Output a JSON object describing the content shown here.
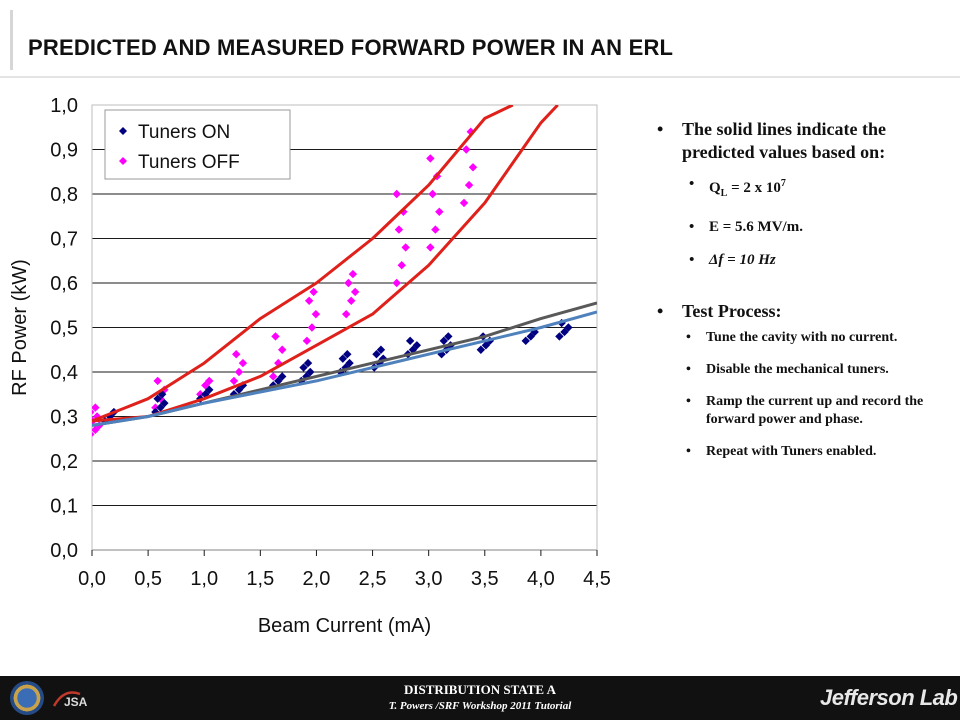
{
  "slide": {
    "title": "PREDICTED AND MEASURED FORWARD POWER IN AN ERL"
  },
  "bullets": {
    "b1": "The solid lines indicate the predicted values based  on:",
    "ql_prefix": "Q",
    "ql_sub": "L",
    "ql_text": " = 2 x 10",
    "ql_exp": "7",
    "e_field": "E = 5.6 MV/m.",
    "detune": "Δf = 10 Hz",
    "b2": "Test Process:",
    "s1": "Tune the cavity with no current.",
    "s2": "Disable the mechanical tuners.",
    "s3": "Ramp the current up and record the forward power and phase.",
    "s4": "Repeat with Tuners enabled."
  },
  "footer": {
    "distribution": "DISTRIBUTION STATE A",
    "tutorial": "T. Powers /SRF Workshop 2011 Tutorial",
    "jlab": "Jefferson Lab",
    "jsa": "JSA"
  },
  "colors": {
    "tuners_on": "#000080",
    "tuners_off": "#ff00ff",
    "predicted_red": "#e0201a",
    "fit_dark": "#595959",
    "fit_blue": "#4f81bd"
  },
  "chart_data": {
    "type": "scatter",
    "title": "",
    "xlabel": "Beam Current (mA)",
    "ylabel": "RF Power (kW)",
    "xlim": [
      0,
      4.5
    ],
    "ylim": [
      0,
      1.0
    ],
    "x_ticks": [
      "0,0",
      "0,5",
      "1,0",
      "1,5",
      "2,0",
      "2,5",
      "3,0",
      "3,5",
      "4,0",
      "4,5"
    ],
    "y_ticks": [
      "0,0",
      "0,1",
      "0,2",
      "0,3",
      "0,4",
      "0,5",
      "0,6",
      "0,7",
      "0,8",
      "0,9",
      "1,0"
    ],
    "grid": "horizontal",
    "legend_position": "top-left",
    "series": [
      {
        "name": "Tuners ON",
        "marker": "diamond",
        "color": "#000080",
        "clusters": [
          {
            "x": 0.15,
            "y": [
              0.29,
              0.3,
              0.31
            ]
          },
          {
            "x": 0.6,
            "y": [
              0.31,
              0.32,
              0.33,
              0.34,
              0.35
            ]
          },
          {
            "x": 1.0,
            "y": [
              0.34,
              0.35,
              0.36
            ]
          },
          {
            "x": 1.3,
            "y": [
              0.35,
              0.36,
              0.37
            ]
          },
          {
            "x": 1.65,
            "y": [
              0.37,
              0.38,
              0.39
            ]
          },
          {
            "x": 1.9,
            "y": [
              0.38,
              0.39,
              0.4,
              0.41,
              0.42
            ]
          },
          {
            "x": 2.25,
            "y": [
              0.4,
              0.41,
              0.42,
              0.43,
              0.44
            ]
          },
          {
            "x": 2.55,
            "y": [
              0.41,
              0.42,
              0.43,
              0.44,
              0.45
            ]
          },
          {
            "x": 2.85,
            "y": [
              0.44,
              0.45,
              0.46,
              0.47
            ]
          },
          {
            "x": 3.15,
            "y": [
              0.44,
              0.45,
              0.46,
              0.47,
              0.48
            ]
          },
          {
            "x": 3.5,
            "y": [
              0.45,
              0.46,
              0.47,
              0.48
            ]
          },
          {
            "x": 3.9,
            "y": [
              0.47,
              0.48,
              0.49
            ]
          },
          {
            "x": 4.2,
            "y": [
              0.48,
              0.49,
              0.5,
              0.51
            ]
          }
        ]
      },
      {
        "name": "Tuners OFF",
        "marker": "diamond",
        "color": "#ff00ff",
        "clusters": [
          {
            "x": 0.02,
            "y": [
              0.26,
              0.27,
              0.28,
              0.29,
              0.3,
              0.31,
              0.32
            ]
          },
          {
            "x": 0.6,
            "y": [
              0.32,
              0.34,
              0.36,
              0.38
            ]
          },
          {
            "x": 1.0,
            "y": [
              0.35,
              0.37,
              0.38
            ]
          },
          {
            "x": 1.3,
            "y": [
              0.38,
              0.4,
              0.42,
              0.44
            ]
          },
          {
            "x": 1.65,
            "y": [
              0.39,
              0.42,
              0.45,
              0.48
            ]
          },
          {
            "x": 1.95,
            "y": [
              0.47,
              0.5,
              0.53,
              0.56,
              0.58
            ]
          },
          {
            "x": 2.3,
            "y": [
              0.53,
              0.56,
              0.58,
              0.6,
              0.62
            ]
          },
          {
            "x": 2.75,
            "y": [
              0.6,
              0.64,
              0.68,
              0.72,
              0.76,
              0.8
            ]
          },
          {
            "x": 3.05,
            "y": [
              0.68,
              0.72,
              0.76,
              0.8,
              0.84,
              0.88
            ]
          },
          {
            "x": 3.35,
            "y": [
              0.78,
              0.82,
              0.86,
              0.9,
              0.94
            ]
          }
        ]
      }
    ],
    "lines": [
      {
        "color": "#e0201a",
        "x": [
          0.0,
          0.5,
          1.0,
          1.5,
          2.0,
          2.5,
          3.0,
          3.5,
          3.75
        ],
        "y": [
          0.29,
          0.34,
          0.42,
          0.52,
          0.6,
          0.7,
          0.82,
          0.97,
          1.0
        ]
      },
      {
        "color": "#e0201a",
        "x": [
          0.0,
          0.5,
          1.0,
          1.5,
          2.0,
          2.5,
          3.0,
          3.5,
          4.0,
          4.15
        ],
        "y": [
          0.29,
          0.3,
          0.34,
          0.39,
          0.46,
          0.53,
          0.64,
          0.78,
          0.96,
          1.0
        ]
      },
      {
        "color": "#595959",
        "x": [
          0.0,
          0.5,
          1.0,
          1.5,
          2.0,
          2.5,
          3.0,
          3.5,
          4.0,
          4.5
        ],
        "y": [
          0.28,
          0.3,
          0.33,
          0.36,
          0.39,
          0.42,
          0.45,
          0.48,
          0.52,
          0.555
        ]
      },
      {
        "color": "#4f81bd",
        "x": [
          0.0,
          0.5,
          1.0,
          1.5,
          2.0,
          2.5,
          3.0,
          3.5,
          4.0,
          4.5
        ],
        "y": [
          0.28,
          0.3,
          0.33,
          0.355,
          0.38,
          0.41,
          0.44,
          0.47,
          0.5,
          0.535
        ]
      }
    ]
  }
}
